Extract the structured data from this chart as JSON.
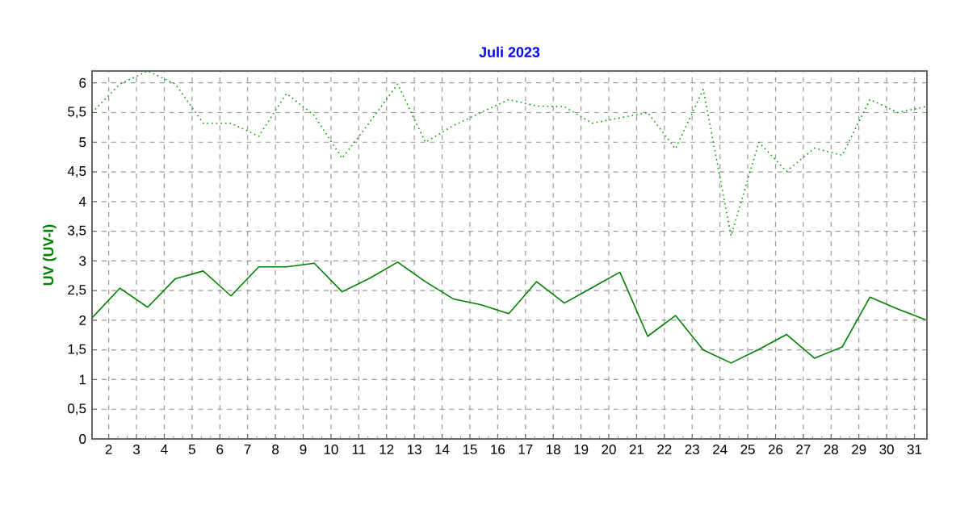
{
  "chart_data": {
    "type": "line",
    "title": "Juli 2023",
    "ylabel": "UV (UV-I)",
    "x": [
      1.4,
      2.4,
      3.4,
      4.4,
      5.4,
      6.4,
      7.4,
      8.4,
      9.4,
      10.4,
      11.4,
      12.4,
      13.4,
      14.4,
      15.4,
      16.4,
      17.4,
      18.4,
      19.4,
      20.4,
      21.4,
      22.4,
      23.4,
      24.4,
      25.4,
      26.4,
      27.4,
      28.4,
      29.4,
      30.4,
      31.4
    ],
    "series": [
      {
        "color": "#00a000",
        "line_style": "dotted",
        "values": [
          5.5,
          5.98,
          6.2,
          5.98,
          5.32,
          5.32,
          5.1,
          5.82,
          5.45,
          4.73,
          5.34,
          5.98,
          5.0,
          5.28,
          5.5,
          5.72,
          5.61,
          5.6,
          5.32,
          5.41,
          5.5,
          4.89,
          5.89,
          3.42,
          5.0,
          4.51,
          4.9,
          4.78,
          5.72,
          5.5,
          5.6
        ]
      },
      {
        "color": "#008000",
        "line_style": "solid",
        "values": [
          2.04,
          2.54,
          2.22,
          2.7,
          2.83,
          2.41,
          2.9,
          2.9,
          2.96,
          2.48,
          2.71,
          2.98,
          2.65,
          2.36,
          2.26,
          2.11,
          2.65,
          2.29,
          2.55,
          2.81,
          1.73,
          2.08,
          1.5,
          1.28,
          1.51,
          1.76,
          1.36,
          1.55,
          2.39,
          2.19,
          2.01
        ]
      }
    ],
    "xlim": [
      1.4,
      31.45
    ],
    "xticks": [
      2,
      3,
      4,
      5,
      6,
      7,
      8,
      9,
      10,
      11,
      12,
      13,
      14,
      15,
      16,
      17,
      18,
      19,
      20,
      21,
      22,
      23,
      24,
      25,
      26,
      27,
      28,
      29,
      30,
      31
    ],
    "ylim": [
      0,
      6.2
    ],
    "yticks": [
      0,
      {
        "value": 0.5,
        "label": "0,5"
      },
      1,
      {
        "value": 1.5,
        "label": "1,5"
      },
      2,
      {
        "value": 2.5,
        "label": "2,5"
      },
      3,
      {
        "value": 3.5,
        "label": "3,5"
      },
      4,
      {
        "value": 4.5,
        "label": "4,5"
      },
      5,
      {
        "value": 5.5,
        "label": "5,5"
      },
      6
    ],
    "grid": true,
    "marker": "none"
  }
}
